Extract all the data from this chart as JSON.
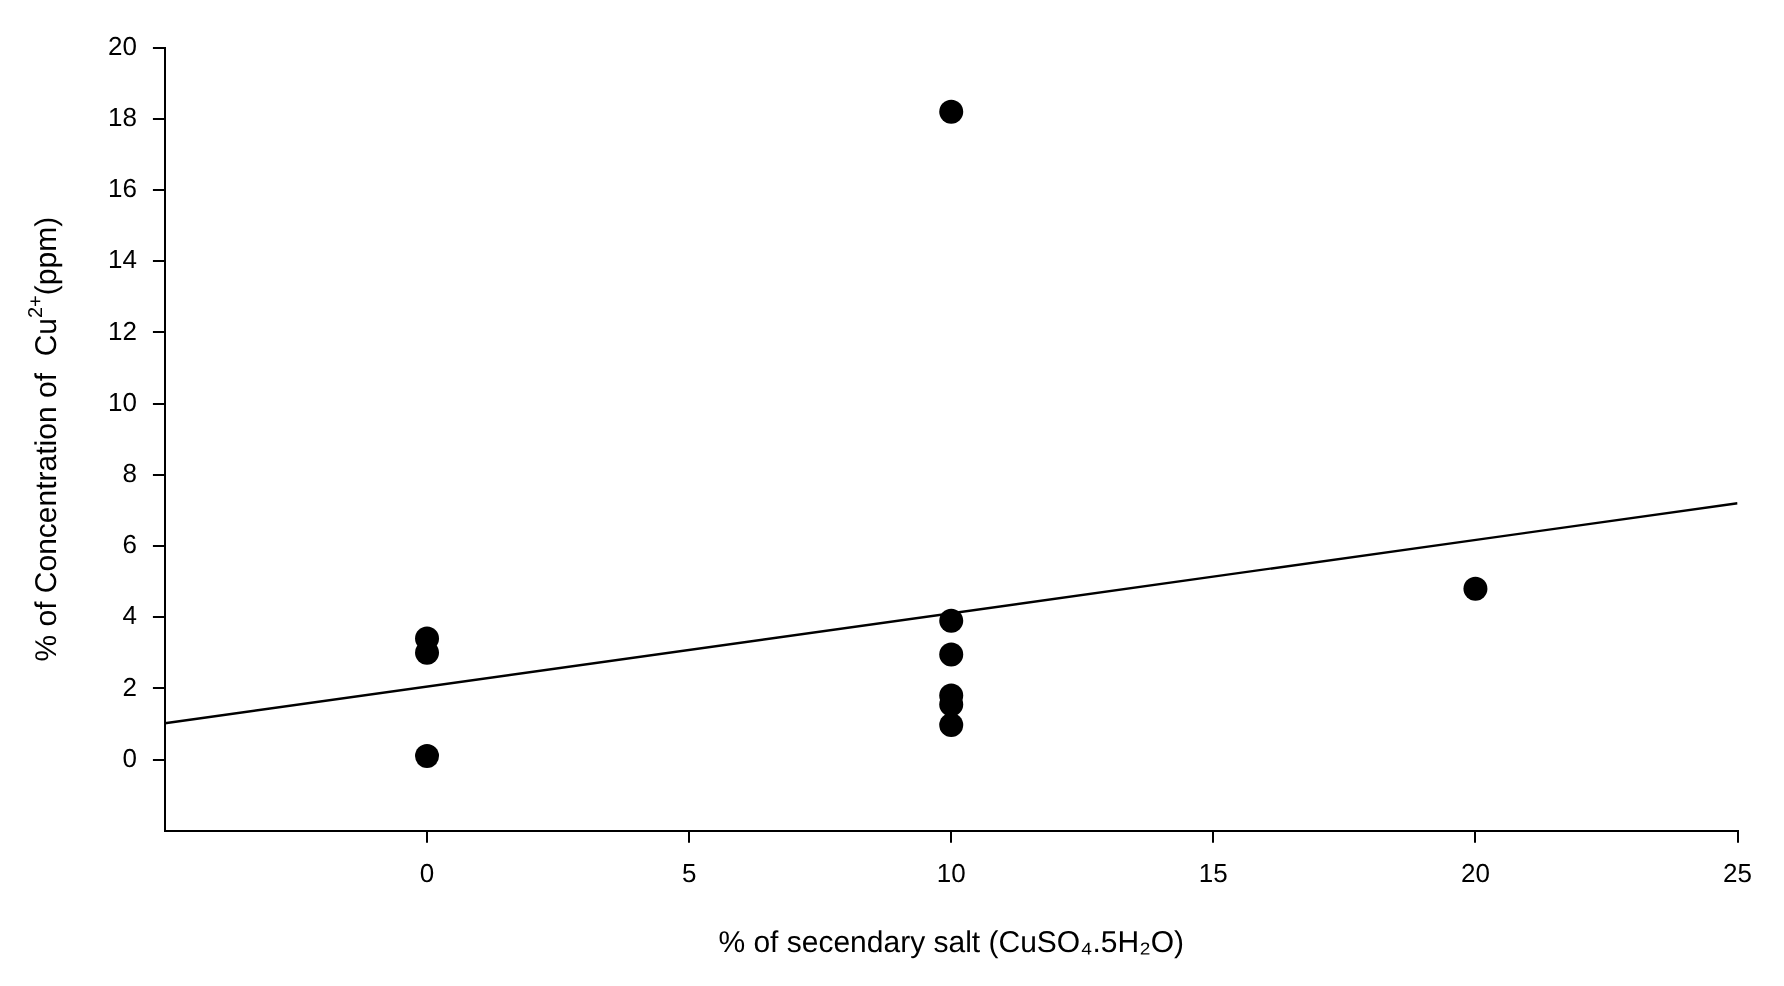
{
  "chart_data": {
    "type": "scatter",
    "xlabel": "% of secendary salt (CuSO₄.5H₂O)",
    "ylabel": "% of Concentration of  Cu$^{2+}$(ppm)",
    "xlim": [
      -5,
      25
    ],
    "xticks": [
      0,
      5,
      10,
      15,
      20,
      25
    ],
    "ylim": [
      -2,
      20
    ],
    "yticks": [
      0,
      2,
      4,
      6,
      8,
      10,
      12,
      14,
      16,
      18,
      20
    ],
    "grid": false,
    "legend": false,
    "marker": "circle",
    "series": [
      {
        "type": "scatter",
        "color": "#000000",
        "x": [
          0,
          0,
          0,
          10,
          10,
          10,
          10,
          10,
          10,
          20
        ],
        "values": [
          3.4,
          3.0,
          0.1,
          18.2,
          3.9,
          2.95,
          1.8,
          1.55,
          0.97,
          4.8
        ]
      },
      {
        "type": "line",
        "color": "#000000",
        "marker": "none",
        "line_style": "solid",
        "x": [
          -5,
          25
        ],
        "values": [
          1.02,
          7.2
        ]
      }
    ]
  }
}
